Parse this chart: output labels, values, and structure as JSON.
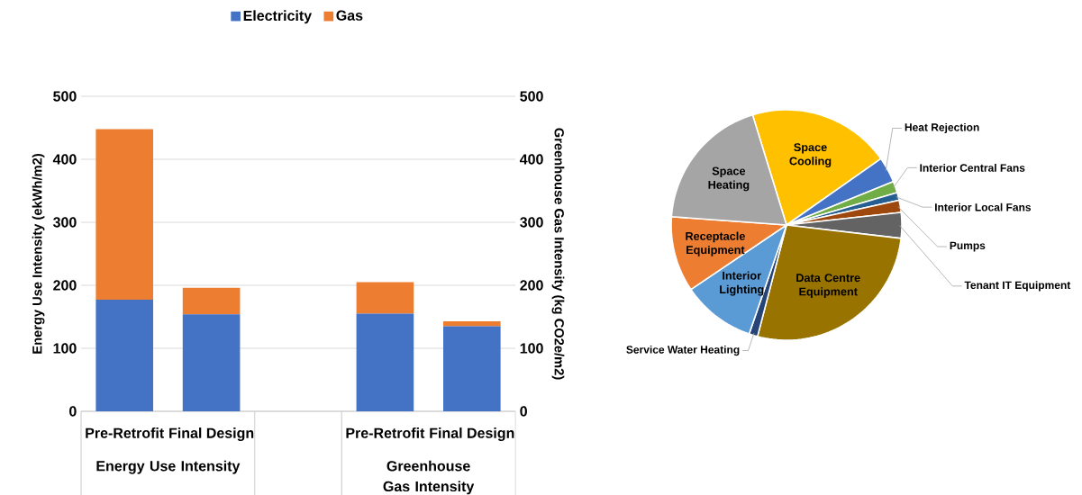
{
  "chart_data": [
    {
      "type": "bar",
      "stacked": true,
      "categories": [
        "Pre-Retrofit",
        "Final Design",
        null,
        "Pre-Retrofit",
        "Final Design"
      ],
      "series": [
        {
          "name": "Electricity",
          "color": "#4472c4",
          "values": [
            177,
            154,
            null,
            155,
            135
          ]
        },
        {
          "name": "Gas",
          "color": "#ed7d31",
          "values": [
            271,
            42,
            null,
            50,
            8
          ]
        }
      ],
      "ylabel": "Energy Use Intensity (ekWh/m2)",
      "y2label": "Greenhouse Gas Intensity (kg CO2e/m2)",
      "ylim": [
        0,
        500
      ],
      "yticks": [
        0,
        100,
        200,
        300,
        400,
        500
      ],
      "y2lim": [
        0,
        500
      ],
      "y2ticks": [
        0,
        100,
        200,
        300,
        400,
        500
      ],
      "grid": "y",
      "legend": "top",
      "annotations": [
        "Energy Use Intensity",
        "Greenhouse Gas Intensity"
      ]
    },
    {
      "type": "pie",
      "categories": [
        "Space Cooling",
        "Heat Rejection",
        "Interior Central Fans",
        "Interior Local Fans",
        "Pumps",
        "Tenant IT Equipment",
        "Data Centre Equipment",
        "Service Water Heating",
        "Interior Lighting",
        "Receptacle Equipment",
        "Space Heating"
      ],
      "values": [
        20.0,
        3.6,
        1.6,
        1.1,
        1.7,
        3.6,
        27.2,
        1.2,
        10.3,
        10.6,
        19.1
      ],
      "colors": [
        "#ffc000",
        "#4472c4",
        "#70ad47",
        "#255e91",
        "#9e480e",
        "#636363",
        "#997300",
        "#264478",
        "#5b9bd5",
        "#ed7d31",
        "#a5a5a5"
      ]
    }
  ]
}
